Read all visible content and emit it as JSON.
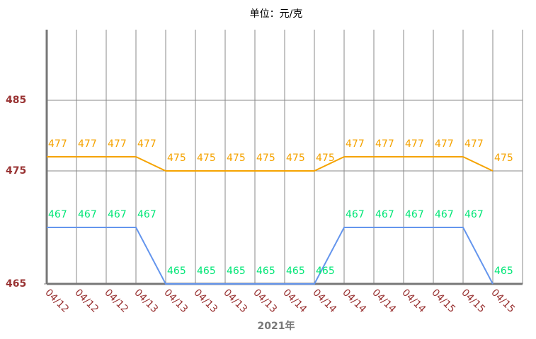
{
  "chart_data": {
    "type": "line",
    "title": "单位：元/克",
    "x_label": "2021年",
    "categories": [
      "04/12",
      "04/12",
      "04/12",
      "04/13",
      "04/13",
      "04/13",
      "04/13",
      "04/13",
      "04/14",
      "04/14",
      "04/14",
      "04/14",
      "04/14",
      "04/15",
      "04/15",
      "04/15"
    ],
    "series": [
      {
        "color": "#f5a300",
        "label_color": "#f5a300",
        "values": [
          477,
          477,
          477,
          477,
          475,
          475,
          475,
          475,
          475,
          475,
          477,
          477,
          477,
          477,
          477,
          475
        ]
      },
      {
        "color": "#6495ed",
        "label_color": "#00e676",
        "axis": "y2",
        "values": [
          467,
          467,
          467,
          467,
          465,
          465,
          465,
          465,
          465,
          465,
          467,
          467,
          467,
          467,
          467,
          465
        ]
      }
    ],
    "ylim": [
      459,
      495
    ],
    "yticks": [
      475,
      485
    ],
    "y2lim": [
      465,
      474
    ],
    "y2ticks": [
      465
    ],
    "grid": true
  }
}
